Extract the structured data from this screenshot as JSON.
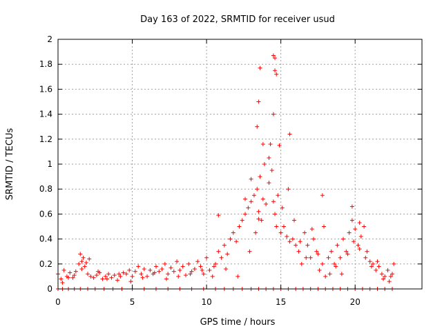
{
  "chart_data": {
    "type": "scatter",
    "title": "Day 163 of 2022, SRMTID for receiver usud",
    "xlabel": "GPS time / hours",
    "ylabel": "SRMTID / TECUs",
    "xlim": [
      0,
      24.5
    ],
    "ylim": [
      0,
      2
    ],
    "xticks": [
      0,
      5,
      10,
      15,
      20
    ],
    "xtick_labels": [
      "0",
      "5",
      "10",
      "15",
      "20"
    ],
    "yticks": [
      0,
      0.2,
      0.4,
      0.6,
      0.8,
      1,
      1.2,
      1.4,
      1.6,
      1.8,
      2
    ],
    "ytick_labels": [
      "0",
      "0.2",
      "0.4",
      "0.6",
      "0.8",
      "1",
      "1.2",
      "1.4",
      "1.6",
      "1.8",
      "2"
    ],
    "grid": true,
    "marker": "+",
    "color": "#ff0000",
    "series": [
      {
        "name": "SRMTID",
        "x": [
          0.0,
          0.2,
          0.4,
          0.6,
          0.8,
          1.0,
          1.2,
          1.4,
          1.5,
          1.6,
          1.7,
          1.8,
          1.9,
          2.0,
          2.2,
          2.4,
          2.6,
          2.8,
          3.0,
          3.2,
          3.4,
          3.6,
          3.8,
          4.0,
          4.2,
          4.4,
          4.6,
          4.8,
          5.0,
          5.2,
          5.4,
          5.6,
          5.8,
          6.0,
          6.2,
          6.4,
          6.6,
          6.8,
          7.0,
          7.2,
          7.4,
          7.6,
          7.8,
          8.0,
          8.2,
          8.4,
          8.6,
          8.8,
          9.0,
          9.2,
          9.4,
          9.6,
          9.8,
          10.0,
          10.2,
          10.4,
          10.6,
          10.8,
          11.0,
          11.2,
          11.4,
          11.6,
          11.8,
          12.0,
          12.2,
          12.4,
          12.6,
          12.8,
          13.0,
          13.2,
          13.4,
          13.5,
          13.6,
          13.7,
          13.8,
          14.0,
          14.2,
          14.4,
          14.5,
          14.6,
          14.8,
          15.0,
          15.2,
          15.4,
          15.6,
          15.8,
          16.0,
          16.2,
          16.4,
          16.6,
          16.8,
          17.0,
          17.2,
          17.4,
          17.6,
          17.8,
          18.0,
          18.2,
          18.4,
          18.6,
          18.8,
          19.0,
          19.2,
          19.4,
          19.6,
          19.8,
          20.0,
          20.2,
          20.4,
          20.6,
          20.8,
          21.0,
          21.2,
          21.4,
          21.6,
          21.8,
          22.0,
          22.2,
          22.4,
          22.6,
          0.3,
          0.7,
          1.1,
          1.6,
          2.1,
          2.7,
          3.3,
          4.1,
          4.9,
          5.7,
          6.5,
          7.3,
          8.1,
          8.9,
          9.7,
          10.5,
          11.3,
          12.1,
          12.9,
          13.3,
          13.5,
          13.9,
          14.3,
          14.5,
          14.7,
          15.1,
          15.5,
          15.9,
          16.3,
          16.7,
          17.1,
          17.5,
          17.9,
          18.3,
          18.7,
          19.1,
          19.5,
          19.9,
          20.3,
          20.7,
          21.1,
          21.5,
          21.9,
          22.3,
          22.5,
          14.5,
          14.6,
          13.6,
          13.5,
          14.6,
          14.7,
          15.6,
          13.4,
          13.8,
          14.2,
          14.9,
          17.8,
          19.8,
          20.3,
          10.8,
          12.6,
          13.0
        ],
        "y": [
          0.12,
          0.08,
          0.15,
          0.1,
          0.13,
          0.09,
          0.14,
          0.2,
          0.28,
          0.22,
          0.25,
          0.18,
          0.21,
          0.12,
          0.1,
          0.09,
          0.11,
          0.13,
          0.08,
          0.1,
          0.12,
          0.09,
          0.11,
          0.07,
          0.1,
          0.13,
          0.12,
          0.15,
          0.1,
          0.14,
          0.18,
          0.12,
          0.16,
          0.1,
          0.15,
          0.12,
          0.18,
          0.14,
          0.16,
          0.2,
          0.12,
          0.17,
          0.14,
          0.22,
          0.15,
          0.18,
          0.11,
          0.2,
          0.14,
          0.16,
          0.22,
          0.18,
          0.12,
          0.25,
          0.15,
          0.1,
          0.2,
          0.3,
          0.25,
          0.35,
          0.28,
          0.4,
          0.45,
          0.38,
          0.5,
          0.55,
          0.6,
          0.65,
          0.7,
          0.75,
          0.8,
          0.62,
          0.9,
          0.55,
          0.72,
          0.68,
          0.85,
          0.95,
          0.7,
          0.6,
          0.75,
          0.45,
          0.5,
          0.42,
          0.38,
          0.4,
          0.35,
          0.3,
          0.2,
          0.45,
          0.35,
          0.25,
          0.4,
          0.3,
          0.15,
          0.2,
          0.1,
          0.25,
          0.3,
          0.2,
          0.35,
          0.25,
          0.4,
          0.3,
          0.45,
          0.55,
          0.48,
          0.35,
          0.42,
          0.5,
          0.3,
          0.22,
          0.2,
          0.15,
          0.18,
          0.12,
          0.1,
          0.15,
          0.1,
          0.2,
          0.05,
          0.09,
          0.11,
          0.16,
          0.24,
          0.14,
          0.08,
          0.12,
          0.06,
          0.09,
          0.13,
          0.08,
          0.1,
          0.12,
          0.15,
          0.18,
          0.16,
          0.1,
          0.3,
          0.45,
          0.56,
          1.0,
          1.16,
          1.4,
          0.5,
          0.65,
          0.8,
          0.55,
          0.38,
          0.25,
          0.48,
          0.28,
          0.5,
          0.12,
          0.18,
          0.12,
          0.28,
          0.38,
          0.32,
          0.25,
          0.18,
          0.22,
          0.08,
          0.06,
          0.12,
          1.87,
          1.75,
          1.77,
          1.5,
          1.85,
          1.72,
          1.24,
          1.3,
          1.16,
          1.05,
          1.15,
          0.75,
          0.66,
          0.53,
          0.59,
          0.72,
          0.88
        ]
      },
      {
        "name": "SRMTID_zero",
        "x": [
          0.0,
          0.3,
          0.7,
          1.1,
          1.5,
          2.0,
          2.5,
          3.1,
          3.7,
          4.3,
          5.0,
          5.8,
          6.6,
          7.4,
          8.2,
          9.0,
          9.8,
          10.6,
          11.2,
          11.8,
          12.4,
          13.0,
          13.5,
          14.0,
          14.5,
          15.0,
          15.5,
          16.0,
          16.5,
          17.0,
          17.5,
          18.0,
          18.5,
          19.0,
          19.5,
          20.0,
          20.5,
          21.0,
          21.5,
          22.0,
          22.5
        ],
        "y": [
          0,
          0,
          0,
          0,
          0,
          0,
          0,
          0,
          0,
          0,
          0,
          0,
          0,
          0,
          0,
          0,
          0,
          0,
          0,
          0,
          0,
          0,
          0,
          0,
          0,
          0,
          0,
          0,
          0,
          0,
          0,
          0,
          0,
          0,
          0,
          0,
          0,
          0,
          0,
          0,
          0
        ]
      }
    ]
  }
}
